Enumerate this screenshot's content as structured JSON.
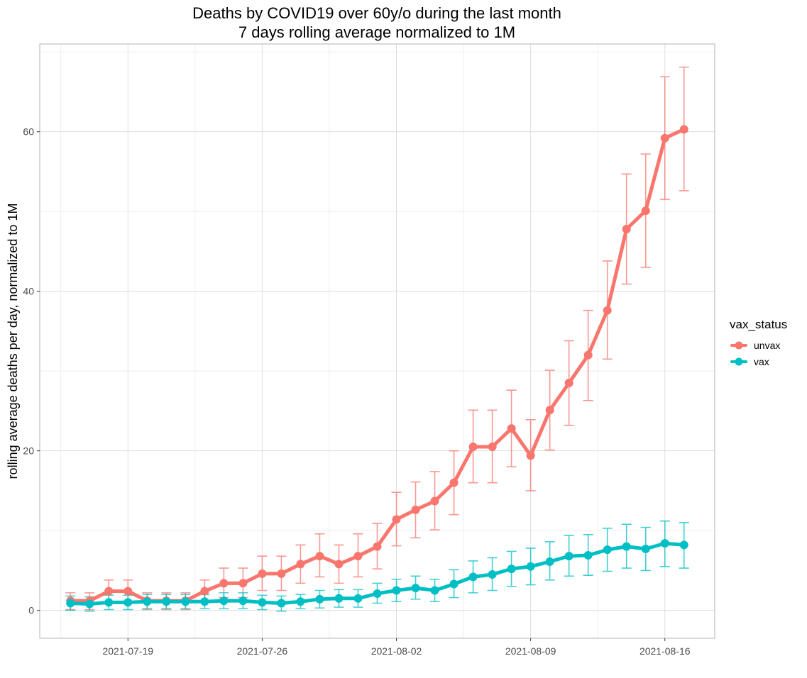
{
  "chart_data": {
    "type": "line",
    "title": "Deaths by COVID19 over 60y/o during the last month",
    "subtitle": "7 days rolling average normalized to 1M",
    "xlabel": "",
    "ylabel": "rolling average deaths per day, normalized to 1M",
    "x": [
      "2021-07-16",
      "2021-07-17",
      "2021-07-18",
      "2021-07-19",
      "2021-07-20",
      "2021-07-21",
      "2021-07-22",
      "2021-07-23",
      "2021-07-24",
      "2021-07-25",
      "2021-07-26",
      "2021-07-27",
      "2021-07-28",
      "2021-07-29",
      "2021-07-30",
      "2021-07-31",
      "2021-08-01",
      "2021-08-02",
      "2021-08-03",
      "2021-08-04",
      "2021-08-05",
      "2021-08-06",
      "2021-08-07",
      "2021-08-08",
      "2021-08-09",
      "2021-08-10",
      "2021-08-11",
      "2021-08-12",
      "2021-08-13",
      "2021-08-14",
      "2021-08-15",
      "2021-08-16",
      "2021-08-17"
    ],
    "x_ticks": [
      "2021-07-19",
      "2021-07-26",
      "2021-08-02",
      "2021-08-09",
      "2021-08-16"
    ],
    "y_ticks": [
      0,
      20,
      40,
      60
    ],
    "ylim": [
      -3.5,
      71
    ],
    "grid": true,
    "legend": {
      "title": "vax_status",
      "position": "right"
    },
    "series": [
      {
        "name": "unvax",
        "color": "#F8766D",
        "values": [
          1.2,
          1.2,
          2.4,
          2.4,
          1.2,
          1.2,
          1.2,
          2.4,
          3.4,
          3.4,
          4.6,
          4.6,
          5.8,
          6.8,
          5.8,
          6.8,
          8.0,
          11.4,
          12.6,
          13.7,
          16.0,
          20.5,
          20.5,
          22.8,
          19.4,
          25.1,
          28.5,
          32.0,
          37.6,
          47.8,
          50.1,
          59.2,
          60.3
        ],
        "lower": [
          0.1,
          0.1,
          1.0,
          1.0,
          0.1,
          0.1,
          0.1,
          1.0,
          1.6,
          1.6,
          2.5,
          2.5,
          3.4,
          4.2,
          3.4,
          4.2,
          5.2,
          8.1,
          9.1,
          10.1,
          12.0,
          16.0,
          16.0,
          18.0,
          15.0,
          20.1,
          23.2,
          26.3,
          31.5,
          40.9,
          43.0,
          51.5,
          52.6
        ],
        "upper": [
          2.2,
          2.2,
          3.8,
          3.8,
          2.2,
          2.2,
          2.2,
          3.8,
          5.3,
          5.3,
          6.8,
          6.8,
          8.2,
          9.6,
          8.2,
          9.6,
          10.9,
          14.8,
          16.1,
          17.4,
          20.0,
          25.1,
          25.1,
          27.6,
          23.9,
          30.1,
          33.8,
          37.6,
          43.8,
          54.7,
          57.2,
          66.9,
          68.1
        ]
      },
      {
        "name": "vax",
        "color": "#00BFC4",
        "values": [
          0.9,
          0.8,
          1.0,
          1.0,
          1.1,
          1.1,
          1.1,
          1.1,
          1.2,
          1.2,
          1.0,
          0.9,
          1.1,
          1.4,
          1.5,
          1.5,
          2.1,
          2.5,
          2.8,
          2.5,
          3.3,
          4.2,
          4.5,
          5.2,
          5.5,
          6.1,
          6.8,
          6.9,
          7.6,
          8.0,
          7.7,
          8.4,
          8.2
        ],
        "lower": [
          0.0,
          -0.1,
          0.1,
          0.1,
          0.2,
          0.2,
          0.2,
          0.2,
          0.2,
          0.2,
          0.1,
          -0.1,
          0.2,
          0.3,
          0.4,
          0.4,
          0.9,
          1.1,
          1.4,
          1.1,
          1.6,
          2.2,
          2.5,
          3.0,
          3.2,
          3.8,
          4.3,
          4.4,
          4.9,
          5.3,
          5.0,
          5.5,
          5.3
        ],
        "upper": [
          1.8,
          1.7,
          1.9,
          1.9,
          2.0,
          2.0,
          2.0,
          2.0,
          2.2,
          2.2,
          1.9,
          1.8,
          2.0,
          2.5,
          2.6,
          2.6,
          3.4,
          3.9,
          4.3,
          3.9,
          5.1,
          6.2,
          6.6,
          7.4,
          7.8,
          8.6,
          9.4,
          9.5,
          10.3,
          10.8,
          10.4,
          11.2,
          11.0
        ]
      }
    ]
  }
}
